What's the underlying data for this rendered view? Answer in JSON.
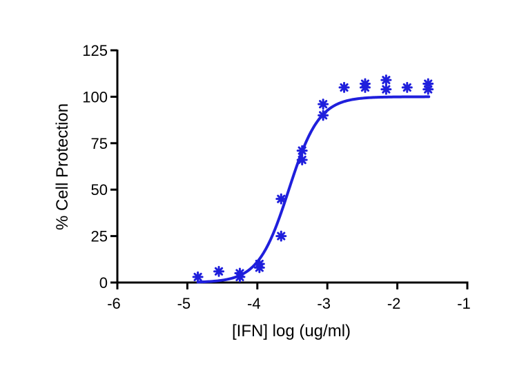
{
  "chart_data": {
    "type": "scatter",
    "title": "",
    "xlabel": "[IFN] log (ug/ml)",
    "ylabel": "% Cell Protection",
    "xlim": [
      -6,
      -1
    ],
    "ylim": [
      0,
      125
    ],
    "x_ticks": [
      "-6",
      "-5",
      "-4",
      "-3",
      "-2",
      "-1"
    ],
    "y_ticks": [
      "0",
      "25",
      "50",
      "75",
      "100",
      "125"
    ],
    "grid": false,
    "legend": "none",
    "colors": {
      "series": "#1f1fdc",
      "axis": "#000000"
    },
    "series": [
      {
        "marker": "asterisk",
        "points": [
          {
            "x": -4.85,
            "y": 3
          },
          {
            "x": -4.55,
            "y": 6
          },
          {
            "x": -4.25,
            "y": 5
          },
          {
            "x": -4.25,
            "y": 3
          },
          {
            "x": -3.97,
            "y": 10
          },
          {
            "x": -3.97,
            "y": 8
          },
          {
            "x": -3.66,
            "y": 45
          },
          {
            "x": -3.66,
            "y": 25
          },
          {
            "x": -3.36,
            "y": 71
          },
          {
            "x": -3.36,
            "y": 66
          },
          {
            "x": -3.06,
            "y": 96
          },
          {
            "x": -3.06,
            "y": 90
          },
          {
            "x": -2.76,
            "y": 105
          },
          {
            "x": -2.46,
            "y": 107
          },
          {
            "x": -2.46,
            "y": 105
          },
          {
            "x": -2.16,
            "y": 109
          },
          {
            "x": -2.16,
            "y": 104
          },
          {
            "x": -1.86,
            "y": 105
          },
          {
            "x": -1.56,
            "y": 107
          },
          {
            "x": -1.56,
            "y": 104
          }
        ]
      }
    ],
    "fit_curve": {
      "type": "sigmoidal",
      "bottom": 0,
      "top": 100,
      "log_ec50": -3.55,
      "hill_slope": 2.0,
      "x_range": [
        -4.85,
        -1.55
      ]
    }
  }
}
